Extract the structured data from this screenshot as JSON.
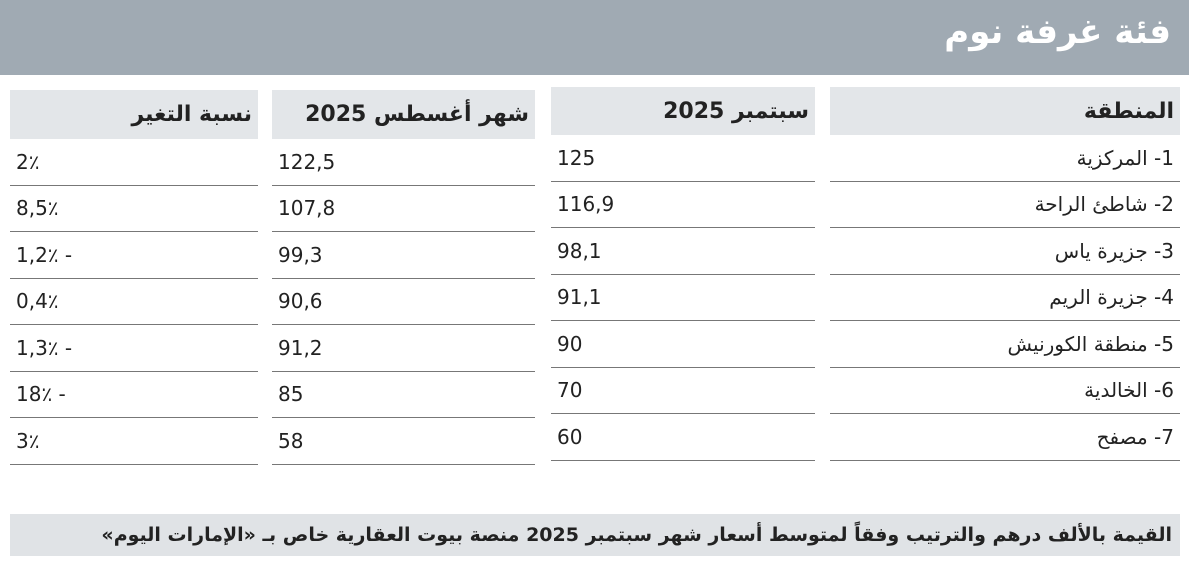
{
  "header": {
    "title": "فئة غرفة نوم"
  },
  "table": {
    "columns": [
      "المنطقة",
      "سبتمبر 2025",
      "شهر أغسطس 2025",
      "نسبة التغير"
    ],
    "rows": [
      [
        "1- المركزية",
        "125",
        "122,5",
        "2٪"
      ],
      [
        "2- شاطئ الراحة",
        "116,9",
        "107,8",
        "8,5٪"
      ],
      [
        "3- جزيرة ياس",
        "98,1",
        "99,3",
        "- 1,2٪"
      ],
      [
        "4- جزيرة الريم",
        "91,1",
        "90,6",
        "0,4٪"
      ],
      [
        "5- منطقة الكورنيش",
        "90",
        "91,2",
        "- 1,3٪"
      ],
      [
        "6- الخالدية",
        "70",
        "85",
        "- 18٪"
      ],
      [
        "7- مصفح",
        "60",
        "58",
        "3٪"
      ]
    ]
  },
  "footer": {
    "note": "القيمة بالألف درهم والترتيب وفقاً لمتوسط أسعار شهر سبتمبر 2025 منصة بيوت العقارية خاص بـ «الإمارات اليوم»"
  }
}
